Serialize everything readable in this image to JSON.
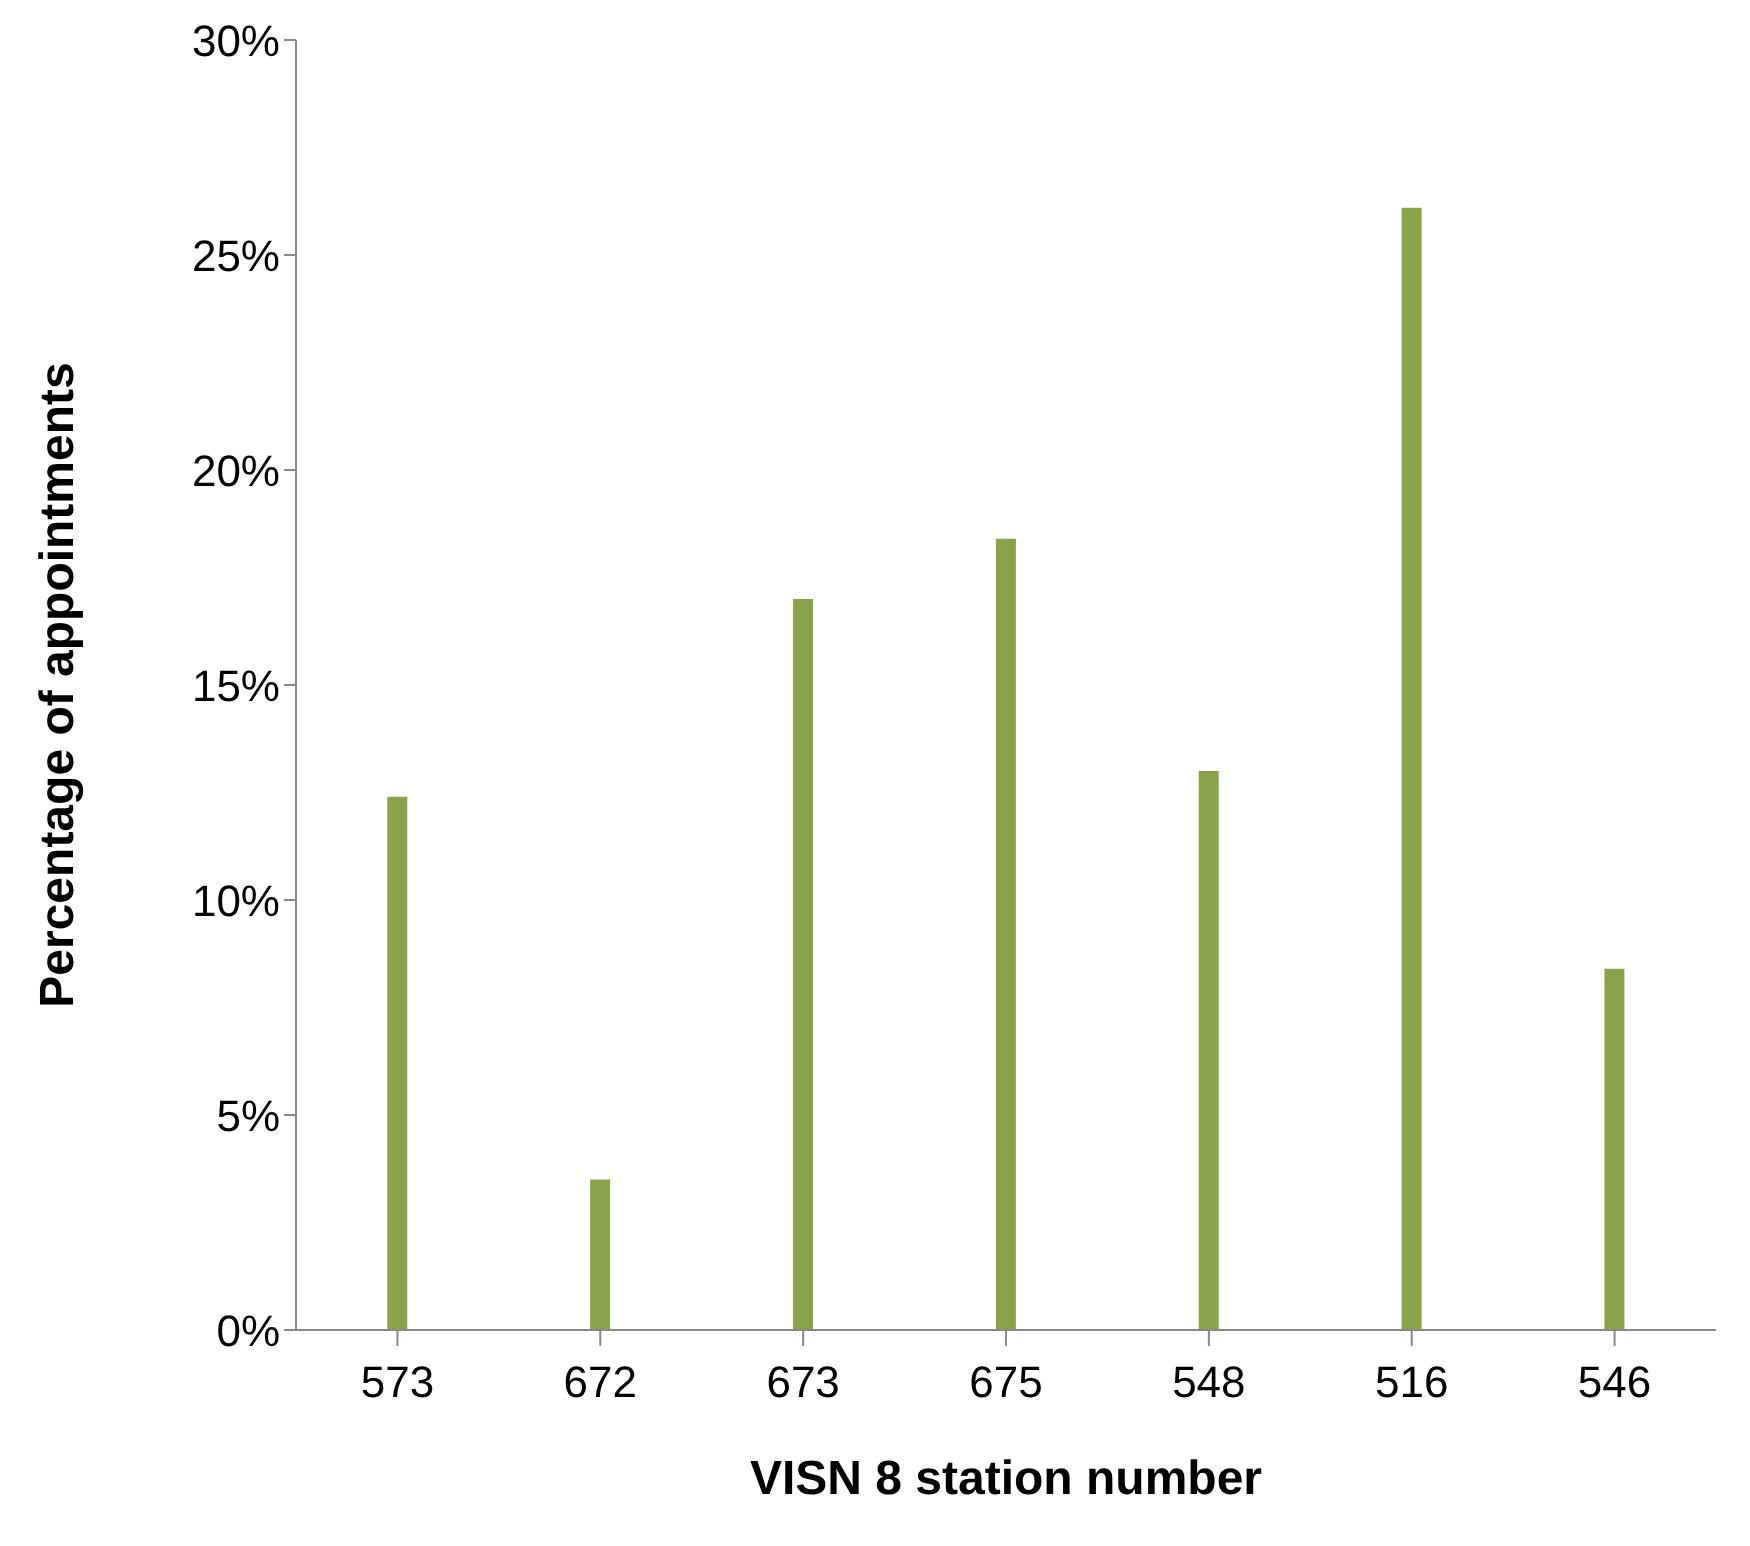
{
  "chart_data": {
    "type": "bar",
    "xlabel": "VISN 8 station number",
    "ylabel": "Percentage of appointments",
    "categories": [
      "573",
      "672",
      "673",
      "675",
      "548",
      "516",
      "546"
    ],
    "values": [
      12.4,
      3.5,
      17.0,
      18.4,
      13.0,
      26.1,
      8.4
    ],
    "color": "#8aa24a",
    "ylim": [
      0,
      30
    ],
    "yticks": [
      {
        "value": 0,
        "label": "0%"
      },
      {
        "value": 5,
        "label": "5%"
      },
      {
        "value": 10,
        "label": "10%"
      },
      {
        "value": 15,
        "label": "15%"
      },
      {
        "value": 20,
        "label": "20%"
      },
      {
        "value": 25,
        "label": "25%"
      },
      {
        "value": 30,
        "label": "30%"
      }
    ],
    "grid": false,
    "legend": false
  }
}
